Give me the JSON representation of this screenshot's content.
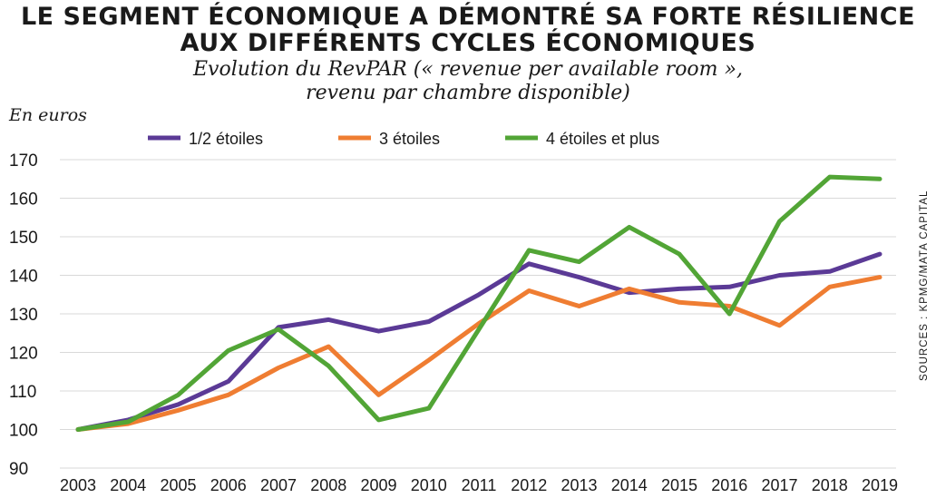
{
  "title": {
    "line1": "LE SEGMENT ÉCONOMIQUE A DÉMONTRÉ SA FORTE RÉSILIENCE",
    "line2": "AUX DIFFÉRENTS CYCLES ÉCONOMIQUES"
  },
  "subtitle": {
    "line1": "Evolution du RevPAR (« revenue per available room »,",
    "line2": "revenu par chambre disponible)"
  },
  "unit_label": "En euros",
  "source": "SOURCES : KPMG/MATA CAPITAL",
  "chart_data": {
    "type": "line",
    "title": "LE SEGMENT ÉCONOMIQUE A DÉMONTRÉ SA FORTE RÉSILIENCE AUX DIFFÉRENTS CYCLES ÉCONOMIQUES",
    "subtitle": "Evolution du RevPAR (« revenue per available room », revenu par chambre disponible)",
    "ylabel": "En euros",
    "xlabel": "",
    "x": [
      "2003",
      "2004",
      "2005",
      "2006",
      "2007",
      "2008",
      "2009",
      "2010",
      "2011",
      "2012",
      "2013",
      "2014",
      "2015",
      "2016",
      "2017",
      "2018",
      "2019"
    ],
    "ylim": [
      90,
      170
    ],
    "yticks": [
      90,
      100,
      110,
      120,
      130,
      140,
      150,
      160,
      170
    ],
    "grid": true,
    "legend_position": "top",
    "series": [
      {
        "name": "1/2 étoiles",
        "color": "#5b3a96",
        "values": [
          100,
          102.5,
          106.5,
          112.5,
          126.5,
          128.5,
          125.5,
          128,
          135,
          143,
          139.5,
          135.5,
          136.5,
          137,
          140,
          141,
          145.5
        ]
      },
      {
        "name": "3 étoiles",
        "color": "#ef7d32",
        "values": [
          100,
          101.5,
          105,
          109,
          116,
          121.5,
          109,
          118,
          127.5,
          136,
          132,
          136.5,
          133,
          132,
          127,
          137,
          139.5
        ]
      },
      {
        "name": "4 étoiles et plus",
        "color": "#52a536",
        "values": [
          100,
          102,
          109,
          120.5,
          126,
          116.5,
          102.5,
          105.5,
          126,
          146.5,
          143.5,
          152.5,
          145.5,
          130,
          154,
          165.5,
          165
        ]
      }
    ]
  }
}
